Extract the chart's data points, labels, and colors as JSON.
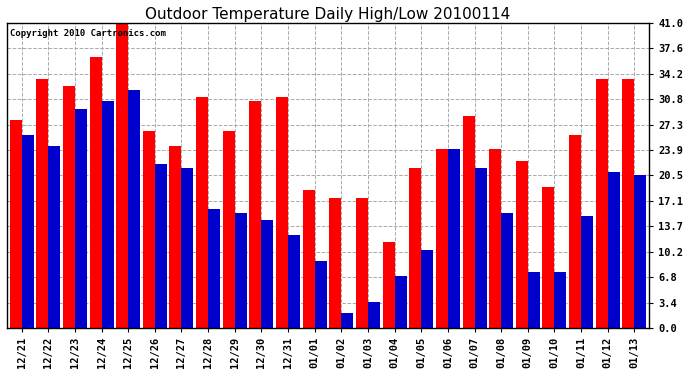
{
  "title": "Outdoor Temperature Daily High/Low 20100114",
  "copyright": "Copyright 2010 Cartronics.com",
  "categories": [
    "12/21",
    "12/22",
    "12/23",
    "12/24",
    "12/25",
    "12/26",
    "12/27",
    "12/28",
    "12/29",
    "12/30",
    "12/31",
    "01/01",
    "01/02",
    "01/03",
    "01/04",
    "01/05",
    "01/06",
    "01/07",
    "01/08",
    "01/09",
    "01/10",
    "01/11",
    "01/12",
    "01/13"
  ],
  "highs": [
    28.0,
    33.5,
    32.5,
    36.5,
    41.5,
    26.5,
    24.5,
    31.0,
    26.5,
    30.5,
    31.0,
    18.5,
    17.5,
    17.5,
    11.5,
    21.5,
    24.0,
    28.5,
    24.0,
    22.5,
    19.0,
    26.0,
    33.5,
    33.5
  ],
  "lows": [
    26.0,
    24.5,
    29.5,
    30.5,
    32.0,
    22.0,
    21.5,
    16.0,
    15.5,
    14.5,
    12.5,
    9.0,
    2.0,
    3.5,
    7.0,
    10.5,
    24.0,
    21.5,
    15.5,
    7.5,
    7.5,
    15.0,
    21.0,
    20.5
  ],
  "high_color": "#ff0000",
  "low_color": "#0000cc",
  "background_color": "#ffffff",
  "grid_color": "#aaaaaa",
  "ylim": [
    0.0,
    41.0
  ],
  "yticks": [
    0.0,
    3.4,
    6.8,
    10.2,
    13.7,
    17.1,
    20.5,
    23.9,
    27.3,
    30.8,
    34.2,
    37.6,
    41.0
  ],
  "title_fontsize": 11,
  "copyright_fontsize": 6.5,
  "tick_fontsize": 7.5,
  "bar_width": 0.45
}
